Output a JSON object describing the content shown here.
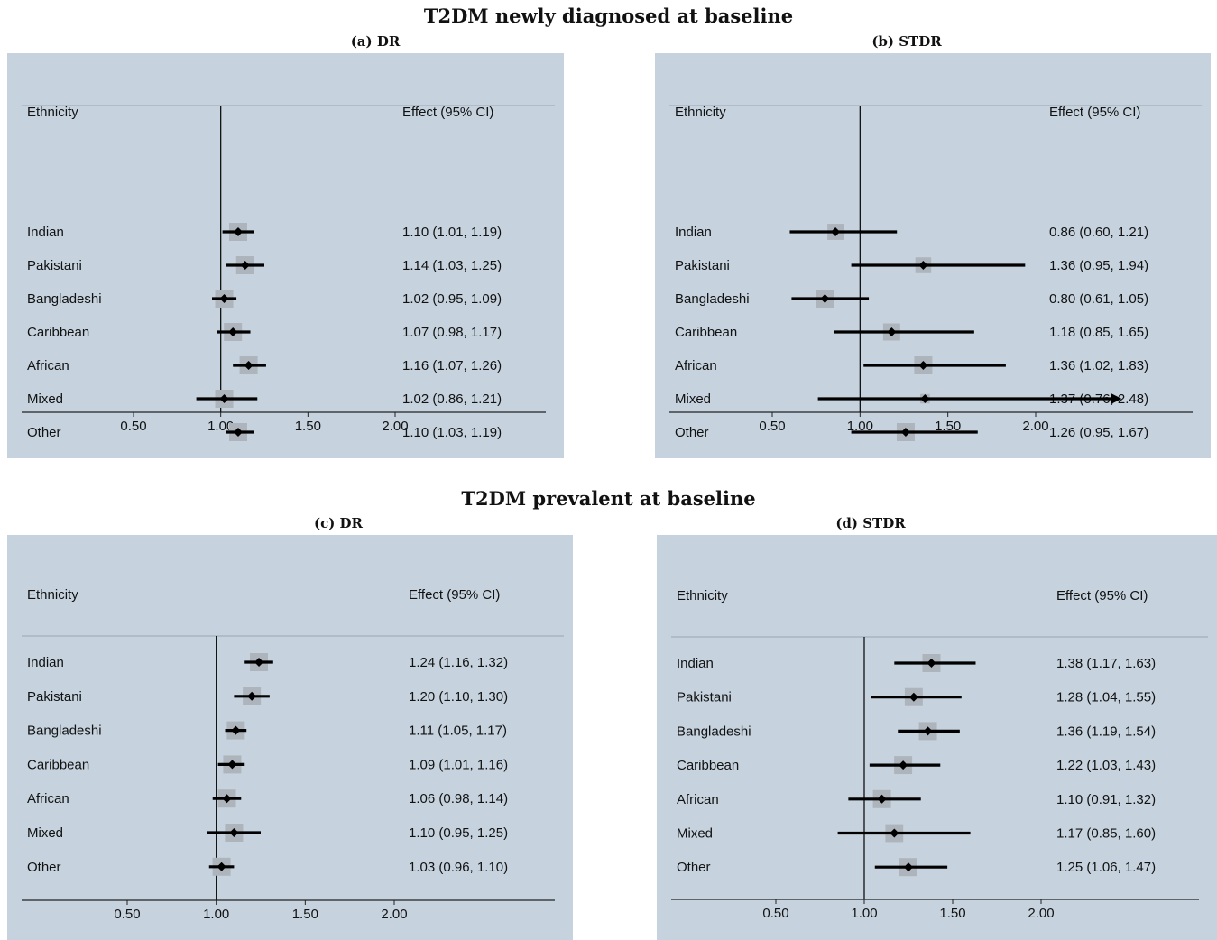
{
  "sections": [
    {
      "title": "T2DM newly diagnosed at baseline"
    },
    {
      "title": "T2DM prevalent at baseline"
    }
  ],
  "chart_data": [
    {
      "type": "forest",
      "title": "(a) DR",
      "xlabel": "",
      "ylabel": "",
      "column_headers": {
        "label": "Ethnicity",
        "effect": "Effect (95% CI)"
      },
      "xlim": [
        0.0,
        2.5
      ],
      "xticks": [
        0.5,
        1.0,
        1.5,
        2.0
      ],
      "xtick_labels": [
        "0.50",
        "1.00",
        "1.50",
        "2.00"
      ],
      "null_line": 1.0,
      "rows": [
        {
          "label": "Indian",
          "est": 1.1,
          "lo": 1.01,
          "hi": 1.19,
          "text": "1.10 (1.01, 1.19)"
        },
        {
          "label": "Pakistani",
          "est": 1.14,
          "lo": 1.03,
          "hi": 1.25,
          "text": "1.14 (1.03, 1.25)"
        },
        {
          "label": "Bangladeshi",
          "est": 1.02,
          "lo": 0.95,
          "hi": 1.09,
          "text": "1.02 (0.95, 1.09)"
        },
        {
          "label": "Caribbean",
          "est": 1.07,
          "lo": 0.98,
          "hi": 1.17,
          "text": "1.07 (0.98, 1.17)"
        },
        {
          "label": "African",
          "est": 1.16,
          "lo": 1.07,
          "hi": 1.26,
          "text": "1.16 (1.07, 1.26)"
        },
        {
          "label": "Mixed",
          "est": 1.02,
          "lo": 0.86,
          "hi": 1.21,
          "text": "1.02 (0.86, 1.21)"
        },
        {
          "label": "Other",
          "est": 1.1,
          "lo": 1.03,
          "hi": 1.19,
          "text": "1.10 (1.03, 1.19)"
        }
      ]
    },
    {
      "type": "forest",
      "title": "(b) STDR",
      "xlabel": "",
      "ylabel": "",
      "column_headers": {
        "label": "Ethnicity",
        "effect": "Effect (95% CI)"
      },
      "xlim": [
        0.0,
        2.5
      ],
      "xticks": [
        0.5,
        1.0,
        1.5,
        2.0
      ],
      "xtick_labels": [
        "0.50",
        "1.00",
        "1.50",
        "2.00"
      ],
      "null_line": 1.0,
      "rows": [
        {
          "label": "Indian",
          "est": 0.86,
          "lo": 0.6,
          "hi": 1.21,
          "text": "0.86 (0.60, 1.21)"
        },
        {
          "label": "Pakistani",
          "est": 1.36,
          "lo": 0.95,
          "hi": 1.94,
          "text": "1.36 (0.95, 1.94)"
        },
        {
          "label": "Bangladeshi",
          "est": 0.8,
          "lo": 0.61,
          "hi": 1.05,
          "text": "0.80 (0.61, 1.05)"
        },
        {
          "label": "Caribbean",
          "est": 1.18,
          "lo": 0.85,
          "hi": 1.65,
          "text": "1.18 (0.85, 1.65)"
        },
        {
          "label": "African",
          "est": 1.36,
          "lo": 1.02,
          "hi": 1.83,
          "text": "1.36 (1.02, 1.83)"
        },
        {
          "label": "Mixed",
          "est": 1.37,
          "lo": 0.76,
          "hi": 2.48,
          "text": "1.37 (0.76, 2.48)",
          "truncated": true
        },
        {
          "label": "Other",
          "est": 1.26,
          "lo": 0.95,
          "hi": 1.67,
          "text": "1.26 (0.95, 1.67)"
        }
      ]
    },
    {
      "type": "forest",
      "title": "(c) DR",
      "xlabel": "",
      "ylabel": "",
      "column_headers": {
        "label": "Ethnicity",
        "effect": "Effect (95% CI)"
      },
      "xlim": [
        0.0,
        2.5
      ],
      "xticks": [
        0.5,
        1.0,
        1.5,
        2.0
      ],
      "xtick_labels": [
        "0.50",
        "1.00",
        "1.50",
        "2.00"
      ],
      "null_line": 1.0,
      "rows": [
        {
          "label": "Indian",
          "est": 1.24,
          "lo": 1.16,
          "hi": 1.32,
          "text": "1.24 (1.16, 1.32)"
        },
        {
          "label": "Pakistani",
          "est": 1.2,
          "lo": 1.1,
          "hi": 1.3,
          "text": "1.20 (1.10, 1.30)"
        },
        {
          "label": "Bangladeshi",
          "est": 1.11,
          "lo": 1.05,
          "hi": 1.17,
          "text": "1.11 (1.05, 1.17)"
        },
        {
          "label": "Caribbean",
          "est": 1.09,
          "lo": 1.01,
          "hi": 1.16,
          "text": "1.09 (1.01, 1.16)"
        },
        {
          "label": "African",
          "est": 1.06,
          "lo": 0.98,
          "hi": 1.14,
          "text": "1.06 (0.98, 1.14)"
        },
        {
          "label": "Mixed",
          "est": 1.1,
          "lo": 0.95,
          "hi": 1.25,
          "text": "1.10 (0.95, 1.25)"
        },
        {
          "label": "Other",
          "est": 1.03,
          "lo": 0.96,
          "hi": 1.1,
          "text": "1.03 (0.96, 1.10)"
        }
      ]
    },
    {
      "type": "forest",
      "title": "(d) STDR",
      "xlabel": "",
      "ylabel": "",
      "column_headers": {
        "label": "Ethnicity",
        "effect": "Effect (95% CI)"
      },
      "xlim": [
        0.0,
        2.5
      ],
      "xticks": [
        0.5,
        1.0,
        1.5,
        2.0
      ],
      "xtick_labels": [
        "0.50",
        "1.00",
        "1.50",
        "2.00"
      ],
      "null_line": 1.0,
      "rows": [
        {
          "label": "Indian",
          "est": 1.38,
          "lo": 1.17,
          "hi": 1.63,
          "text": "1.38 (1.17, 1.63)"
        },
        {
          "label": "Pakistani",
          "est": 1.28,
          "lo": 1.04,
          "hi": 1.55,
          "text": "1.28 (1.04, 1.55)"
        },
        {
          "label": "Bangladeshi",
          "est": 1.36,
          "lo": 1.19,
          "hi": 1.54,
          "text": "1.36 (1.19, 1.54)"
        },
        {
          "label": "Caribbean",
          "est": 1.22,
          "lo": 1.03,
          "hi": 1.43,
          "text": "1.22 (1.03, 1.43)"
        },
        {
          "label": "African",
          "est": 1.1,
          "lo": 0.91,
          "hi": 1.32,
          "text": "1.10 (0.91, 1.32)"
        },
        {
          "label": "Mixed",
          "est": 1.17,
          "lo": 0.85,
          "hi": 1.6,
          "text": "1.17 (0.85, 1.60)"
        },
        {
          "label": "Other",
          "est": 1.25,
          "lo": 1.06,
          "hi": 1.47,
          "text": "1.25 (1.06, 1.47)"
        }
      ]
    }
  ],
  "colors": {
    "panel_background": "#c6d3de",
    "weight_box": "#aeb4bb",
    "marker": "#000000",
    "text": "#111111"
  }
}
